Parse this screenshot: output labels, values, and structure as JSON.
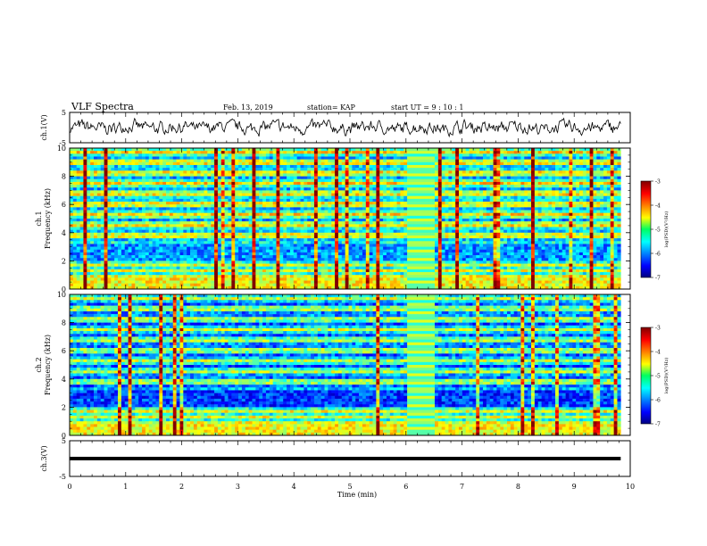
{
  "header": {
    "title": "VLF Spectra",
    "date": "Feb. 13, 2019",
    "station": "station= KAP",
    "start": "start  UT =   9 : 10 : 1"
  },
  "chart_data": [
    {
      "type": "line",
      "panel": "ch1-waveform",
      "ylabel": "ch.1(V)",
      "ylim": [
        -5,
        5
      ],
      "yticks": [
        "5",
        "-5"
      ],
      "xlim": [
        0,
        10
      ]
    },
    {
      "type": "heatmap",
      "panel": "ch1-spectrogram",
      "ylabel": "ch.1\nFrequency  (kHz)",
      "ylim": [
        0,
        10
      ],
      "yticks": [
        "0",
        "2",
        "4",
        "6",
        "8",
        "10"
      ],
      "xlim": [
        0,
        10
      ],
      "colorbar": {
        "label": "log(PSD)(V²/Hz)",
        "range": [
          -7,
          -3
        ],
        "ticks": [
          "-3",
          "-4",
          "-5",
          "-6",
          "-7"
        ]
      }
    },
    {
      "type": "heatmap",
      "panel": "ch2-spectrogram",
      "ylabel": "ch.2\nFrequency  (kHz)",
      "ylim": [
        0,
        10
      ],
      "yticks": [
        "0",
        "2",
        "4",
        "6",
        "8",
        "10"
      ],
      "xlim": [
        0,
        10
      ],
      "colorbar": {
        "label": "log(PSD)(V²/Hz)",
        "range": [
          -7,
          -3
        ],
        "ticks": [
          "-3",
          "-4",
          "-5",
          "-6",
          "-7"
        ]
      }
    },
    {
      "type": "line",
      "panel": "ch3-waveform",
      "ylabel": "ch.3(V)",
      "ylim": [
        -5,
        5
      ],
      "yticks": [
        "5",
        "-5"
      ],
      "xlim": [
        0,
        10
      ],
      "xlabel": "Time  (min)",
      "xticks": [
        "0",
        "1",
        "2",
        "3",
        "4",
        "5",
        "6",
        "7",
        "8",
        "9",
        "10"
      ]
    }
  ]
}
